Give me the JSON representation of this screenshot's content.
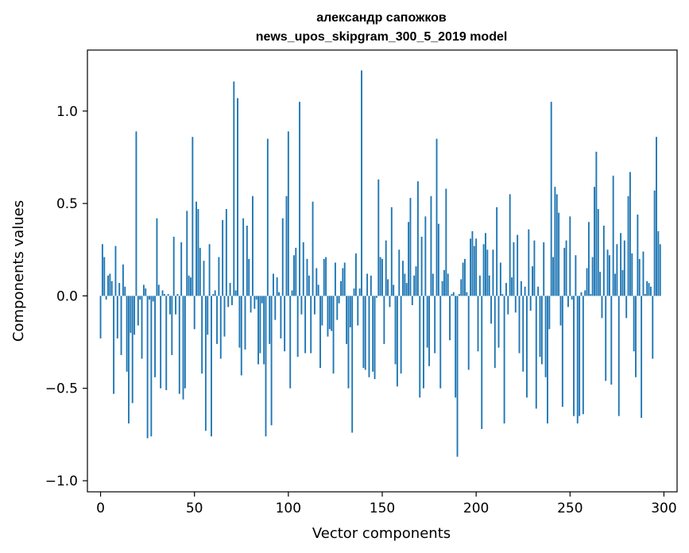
{
  "chart_data": {
    "type": "bar",
    "title": [
      "александр сапожков",
      "news_upos_skipgram_300_5_2019 model"
    ],
    "xlabel": "Vector components",
    "ylabel": "Components values",
    "xlim": [
      -7,
      307
    ],
    "ylim": [
      -1.06,
      1.33
    ],
    "xticks": [
      0,
      50,
      100,
      150,
      200,
      250,
      300
    ],
    "yticks": [
      -1.0,
      -0.5,
      0.0,
      0.5,
      1.0
    ],
    "ytick_labels": [
      "−1.0",
      "−0.5",
      "0.0",
      "0.5",
      "1.0"
    ],
    "bar_color": "#1f77b4",
    "values": [
      -0.23,
      0.28,
      0.21,
      -0.02,
      0.11,
      0.12,
      0.08,
      -0.53,
      0.27,
      -0.23,
      0.07,
      -0.32,
      0.17,
      0.05,
      -0.41,
      -0.69,
      -0.2,
      -0.58,
      -0.21,
      0.89,
      -0.16,
      -0.02,
      -0.34,
      0.06,
      0.04,
      -0.77,
      -0.02,
      -0.76,
      -0.03,
      -0.44,
      0.42,
      0.06,
      -0.5,
      0.03,
      0.01,
      -0.51,
      0.01,
      -0.1,
      -0.32,
      0.32,
      -0.1,
      0.01,
      -0.53,
      0.29,
      -0.56,
      -0.5,
      0.46,
      0.11,
      0.1,
      0.86,
      -0.18,
      0.51,
      0.47,
      0.26,
      -0.42,
      0.19,
      -0.73,
      -0.21,
      0.28,
      -0.76,
      0.01,
      0.03,
      -0.26,
      0.21,
      -0.34,
      0.41,
      -0.22,
      0.47,
      -0.06,
      0.07,
      -0.05,
      1.16,
      0.03,
      1.07,
      -0.28,
      -0.43,
      0.42,
      -0.29,
      0.38,
      0.2,
      -0.09,
      0.54,
      -0.07,
      -0.02,
      -0.37,
      -0.31,
      -0.04,
      -0.37,
      -0.76,
      0.85,
      -0.26,
      -0.7,
      0.12,
      -0.13,
      0.1,
      0.02,
      -0.23,
      0.42,
      -0.3,
      0.54,
      0.89,
      -0.5,
      0.03,
      0.22,
      0.26,
      -0.33,
      1.05,
      -0.1,
      0.29,
      -0.31,
      0.2,
      0.11,
      -0.31,
      0.51,
      -0.1,
      0.15,
      0.06,
      -0.39,
      -0.16,
      0.2,
      0.21,
      -0.22,
      -0.18,
      -0.19,
      -0.42,
      0.18,
      -0.13,
      -0.04,
      0.08,
      0.15,
      0.18,
      -0.26,
      -0.5,
      -0.17,
      -0.74,
      0.04,
      0.23,
      -0.16,
      0.04,
      1.22,
      -0.39,
      -0.4,
      0.12,
      -0.44,
      0.11,
      -0.41,
      -0.45,
      -0.01,
      0.63,
      0.21,
      0.2,
      -0.26,
      0.3,
      0.09,
      -0.06,
      0.48,
      0.06,
      -0.37,
      -0.49,
      0.25,
      -0.42,
      0.19,
      0.12,
      0.07,
      0.4,
      0.53,
      -0.05,
      0.11,
      0.16,
      0.62,
      -0.55,
      0.32,
      -0.5,
      0.43,
      -0.28,
      -0.38,
      0.54,
      0.12,
      -0.31,
      0.85,
      0.39,
      -0.5,
      0.08,
      0.14,
      0.58,
      0.12,
      -0.24,
      0.01,
      0.02,
      -0.55,
      -0.87,
      0.01,
      0.09,
      0.18,
      0.2,
      0.02,
      -0.4,
      0.31,
      0.35,
      0.27,
      0.31,
      -0.3,
      0.11,
      -0.72,
      0.28,
      0.34,
      0.25,
      0.11,
      -0.15,
      0.25,
      -0.39,
      0.48,
      -0.28,
      0.18,
      0.01,
      -0.69,
      0.07,
      -0.1,
      0.55,
      0.1,
      0.29,
      -0.09,
      0.33,
      -0.31,
      0.08,
      -0.41,
      0.05,
      -0.55,
      0.36,
      -0.08,
      0.16,
      0.3,
      -0.61,
      0.05,
      -0.33,
      -0.37,
      0.29,
      -0.44,
      -0.69,
      -0.18,
      1.05,
      0.21,
      0.59,
      0.55,
      0.45,
      -0.16,
      -0.6,
      0.26,
      0.3,
      -0.06,
      0.43,
      -0.02,
      -0.65,
      0.22,
      -0.69,
      -0.65,
      0.02,
      -0.64,
      0.03,
      0.15,
      0.4,
      0.01,
      0.21,
      0.59,
      0.78,
      0.47,
      0.13,
      -0.12,
      0.38,
      -0.46,
      0.25,
      0.22,
      -0.48,
      0.65,
      0.12,
      0.28,
      -0.65,
      0.34,
      0.14,
      0.3,
      -0.12,
      0.54,
      0.67,
      0.23,
      -0.3,
      -0.44,
      0.44,
      0.2,
      -0.66,
      0.24,
      0.01,
      0.08,
      0.07,
      0.05,
      -0.34,
      0.57,
      0.86,
      0.35,
      0.28
    ]
  }
}
